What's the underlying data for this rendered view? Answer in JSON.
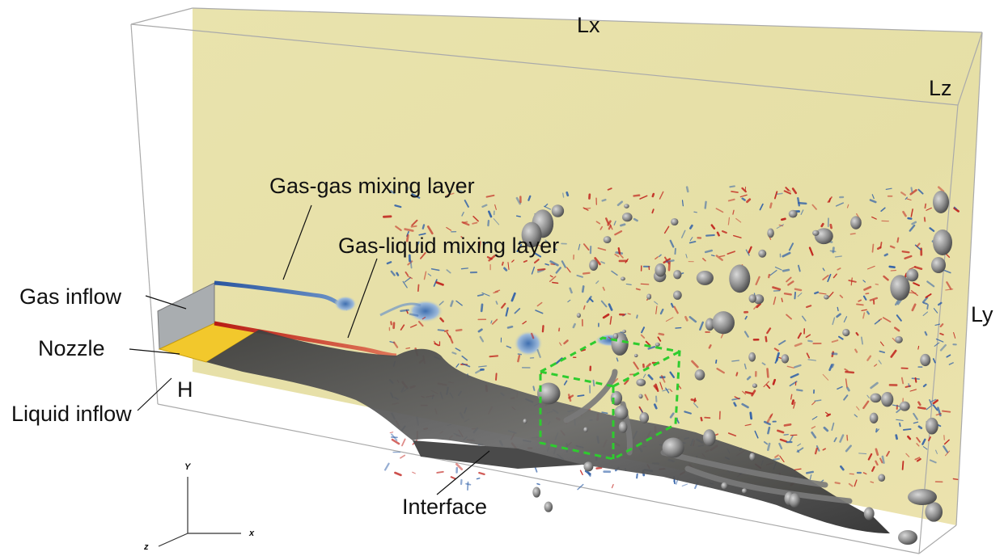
{
  "figure": {
    "labels": {
      "gas_gas_mixing_layer": "Gas-gas mixing layer",
      "gas_liquid_mixing_layer": "Gas-liquid mixing layer",
      "gas_inflow": "Gas inflow",
      "nozzle": "Nozzle",
      "liquid_inflow": "Liquid inflow",
      "interface": "Interface",
      "h": "H",
      "lx": "Lx",
      "ly": "Ly",
      "lz": "Lz"
    },
    "axes": {
      "x": "x",
      "y": "Y",
      "z": "z"
    },
    "colors": {
      "background_field": "#e7e1a8",
      "negative_vorticity": "#2f5fa8",
      "positive_vorticity": "#c0201a",
      "nozzle": "#f2c82c",
      "gas_inflow_face": "#a9adb0",
      "interface": "#555555",
      "domain_edges": "#aaaaaa",
      "subdomain_box": "#2ecc2e"
    }
  }
}
